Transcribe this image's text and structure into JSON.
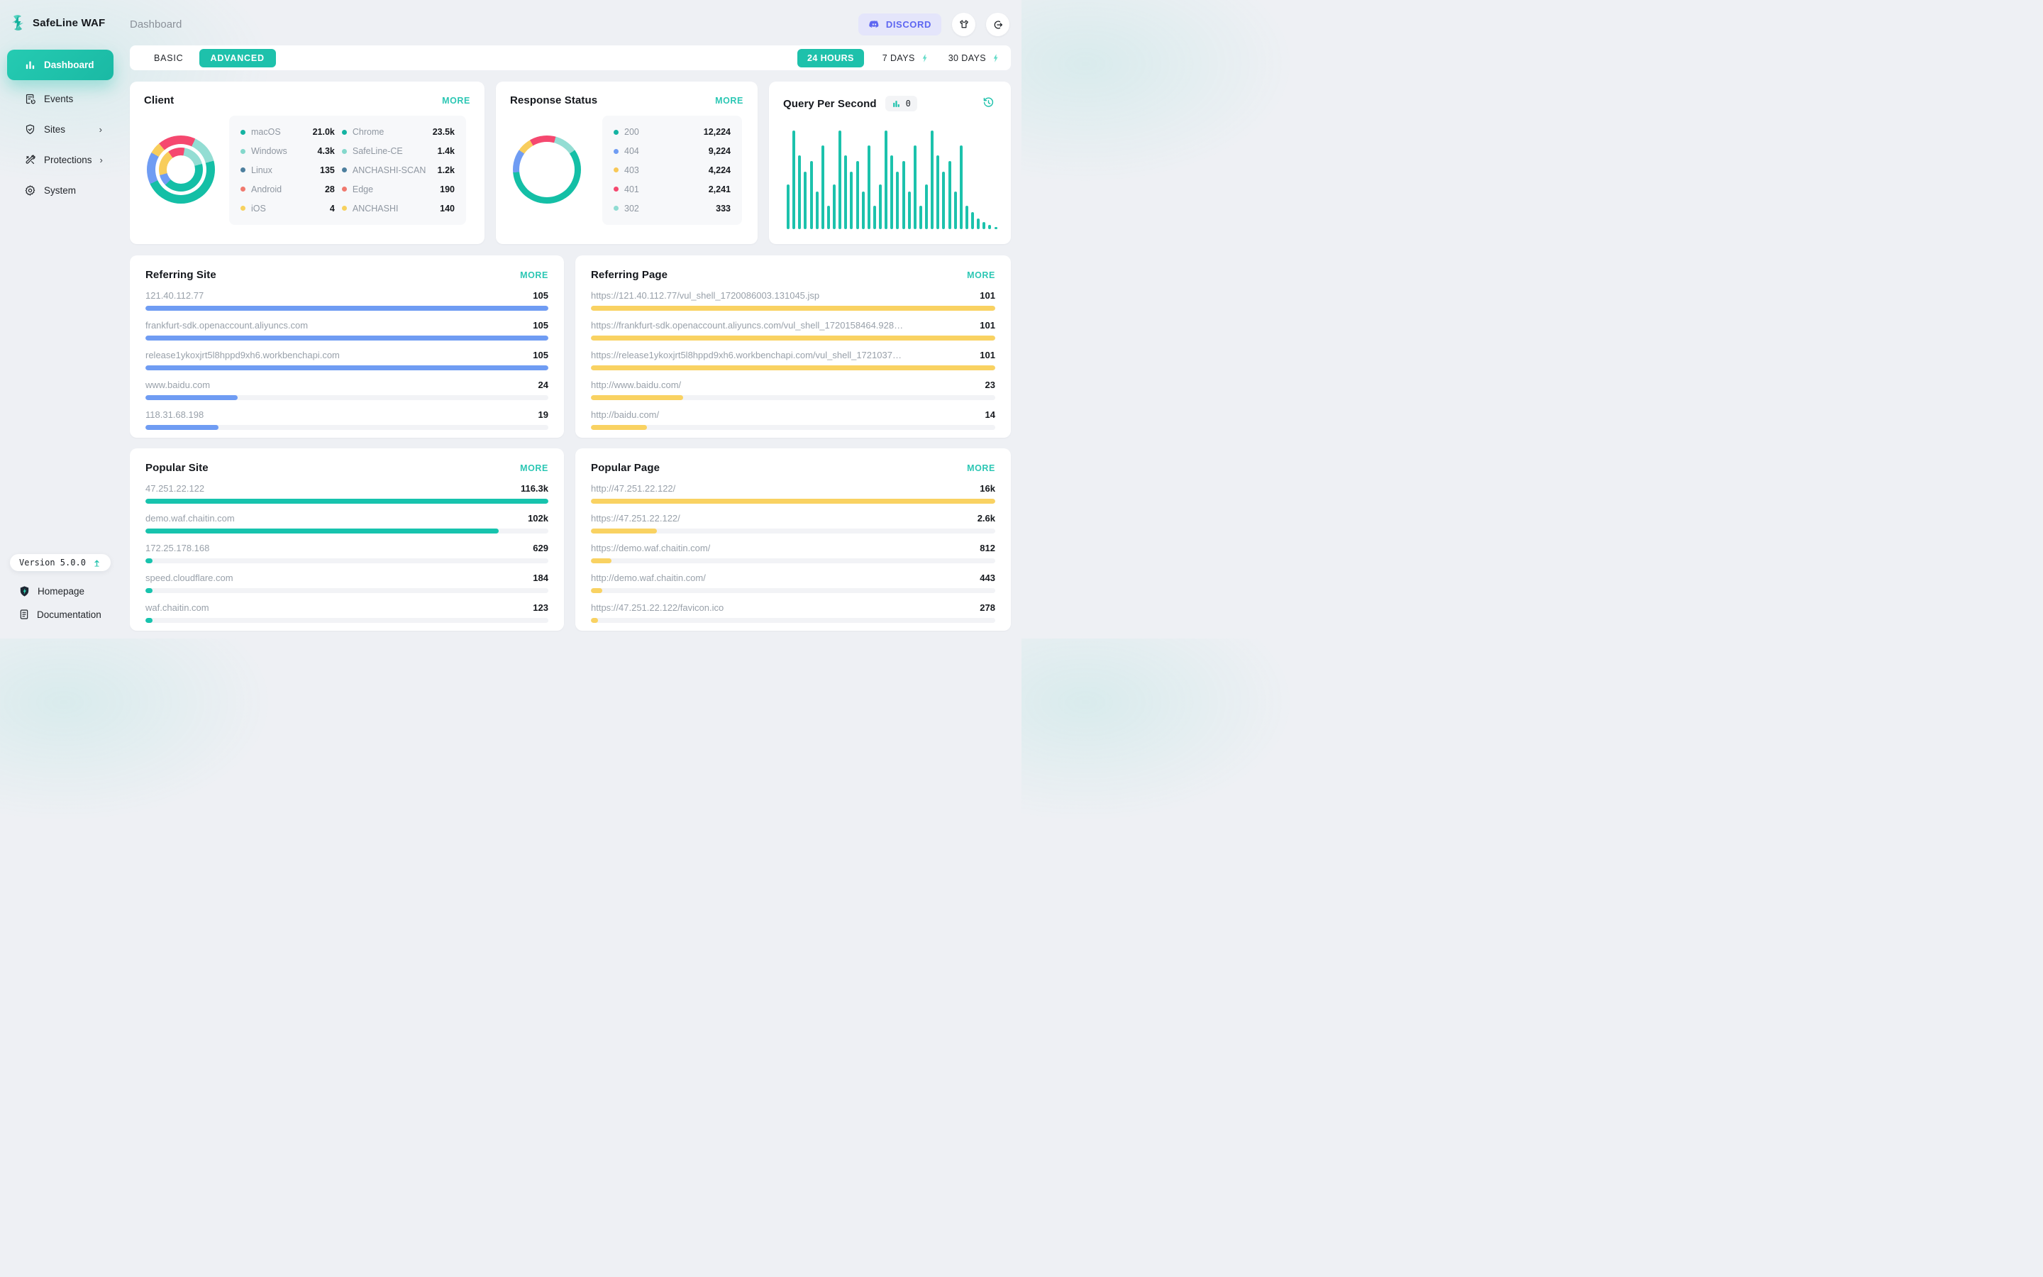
{
  "app": {
    "name": "SafeLine WAF",
    "breadcrumb": "Dashboard"
  },
  "header": {
    "discord_label": "DISCORD",
    "icons": [
      "discord-icon",
      "tshirt-icon",
      "logout-icon"
    ]
  },
  "sidebar": {
    "items": [
      {
        "label": "Dashboard",
        "icon": "bar-chart-icon",
        "active": true,
        "chevron": false
      },
      {
        "label": "Events",
        "icon": "event-log-icon",
        "active": false,
        "chevron": false
      },
      {
        "label": "Sites",
        "icon": "shield-check-icon",
        "active": false,
        "chevron": true
      },
      {
        "label": "Protections",
        "icon": "tools-icon",
        "active": false,
        "chevron": true
      },
      {
        "label": "System",
        "icon": "gear-icon",
        "active": false,
        "chevron": false
      }
    ],
    "chevron_glyph": "›",
    "version": "Version 5.0.0",
    "footer_links": [
      {
        "label": "Homepage",
        "icon": "shield-logo-icon"
      },
      {
        "label": "Documentation",
        "icon": "document-icon"
      }
    ]
  },
  "toolbar": {
    "tabs": [
      "BASIC",
      "ADVANCED"
    ],
    "active_tab": "ADVANCED",
    "ranges": [
      "24 HOURS",
      "7 DAYS",
      "30 DAYS"
    ],
    "active_range": "24 HOURS"
  },
  "colors": {
    "accent_teal": "#1ec1ab",
    "donut_teal": "#14bfa6",
    "donut_light_teal": "#93ddd3",
    "donut_blue": "#6f9cf3",
    "donut_yellow": "#f8cd5c",
    "donut_red": "#f5486f",
    "bar_blue": "#6f9cf3",
    "bar_yellow": "#f9d262",
    "bar_teal": "#17c3ad",
    "discord_indigo": "#5d66f1"
  },
  "cards": {
    "client": {
      "title": "Client",
      "more": "MORE",
      "legend_columns": [
        [
          {
            "label": "macOS",
            "value": "21.0k",
            "dot": "#14b3a2"
          },
          {
            "label": "Windows",
            "value": "4.3k",
            "dot": "#84d8cc"
          },
          {
            "label": "Linux",
            "value": "135",
            "dot": "#4d7f9e"
          },
          {
            "label": "Android",
            "value": "28",
            "dot": "#f0796e"
          },
          {
            "label": "iOS",
            "value": "4",
            "dot": "#f7d15e"
          }
        ],
        [
          {
            "label": "Chrome",
            "value": "23.5k",
            "dot": "#14b3a2"
          },
          {
            "label": "SafeLine-CE",
            "value": "1.4k",
            "dot": "#84d8cc"
          },
          {
            "label": "ANCHASHI-SCAN",
            "value": "1.2k",
            "dot": "#4d7f9e"
          },
          {
            "label": "Edge",
            "value": "190",
            "dot": "#f0796e"
          },
          {
            "label": "ANCHASHI",
            "value": "140",
            "dot": "#f7d15e"
          }
        ]
      ],
      "donut_outer": [
        {
          "color": "#f5486f",
          "end": 25
        },
        {
          "color": "#93ddd3",
          "end": 75
        },
        {
          "color": "#14bfa6",
          "end": 245
        },
        {
          "color": "#6f9cf3",
          "end": 300
        },
        {
          "color": "#f8cd5c",
          "end": 320
        },
        {
          "color": "#f5486f",
          "end": 360
        }
      ],
      "donut_inner": [
        {
          "color": "#f5486f",
          "end": 10
        },
        {
          "color": "#93ddd3",
          "end": 75
        },
        {
          "color": "#14bfa6",
          "end": 225
        },
        {
          "color": "#6f9cf3",
          "end": 255
        },
        {
          "color": "#f8cd5c",
          "end": 325
        },
        {
          "color": "#f5486f",
          "end": 360
        }
      ]
    },
    "response_status": {
      "title": "Response Status",
      "more": "MORE",
      "legend": [
        {
          "label": "200",
          "value": "12,224",
          "dot": "#14b3a2"
        },
        {
          "label": "404",
          "value": "9,224",
          "dot": "#6f9cf3"
        },
        {
          "label": "403",
          "value": "4,224",
          "dot": "#f8c857"
        },
        {
          "label": "401",
          "value": "2,241",
          "dot": "#f5486f"
        },
        {
          "label": "302",
          "value": "333",
          "dot": "#8fdcd2"
        }
      ],
      "donut": [
        {
          "color": "#f5486f",
          "end": 15
        },
        {
          "color": "#93ddd3",
          "end": 55
        },
        {
          "color": "#14bfa6",
          "end": 265
        },
        {
          "color": "#6f9cf3",
          "end": 305
        },
        {
          "color": "#f8cd5c",
          "end": 330
        },
        {
          "color": "#f5486f",
          "end": 360
        }
      ]
    },
    "qps": {
      "title": "Query Per Second",
      "badge_value": "0"
    },
    "referring_site": {
      "title": "Referring Site",
      "more": "MORE",
      "bar_color": "#6f9cf3",
      "rows": [
        {
          "label": "121.40.112.77",
          "display": "105",
          "value": 105
        },
        {
          "label": "frankfurt-sdk.openaccount.aliyuncs.com",
          "display": "105",
          "value": 105
        },
        {
          "label": "release1ykoxjrt5l8hppd9xh6.workbenchapi.com",
          "display": "105",
          "value": 105
        },
        {
          "label": "www.baidu.com",
          "display": "24",
          "value": 24
        },
        {
          "label": "118.31.68.198",
          "display": "19",
          "value": 19
        }
      ]
    },
    "referring_page": {
      "title": "Referring Page",
      "more": "MORE",
      "bar_color": "#f9d262",
      "rows": [
        {
          "label": "https://121.40.112.77/vul_shell_1720086003.131045.jsp",
          "display": "101",
          "value": 101
        },
        {
          "label": "https://frankfurt-sdk.openaccount.aliyuncs.com/vul_shell_1720158464.9283571...",
          "display": "101",
          "value": 101
        },
        {
          "label": "https://release1ykoxjrt5l8hppd9xh6.workbenchapi.com/vul_shell_1721037986...",
          "display": "101",
          "value": 101
        },
        {
          "label": "http://www.baidu.com/",
          "display": "23",
          "value": 23
        },
        {
          "label": "http://baidu.com/",
          "display": "14",
          "value": 14
        }
      ]
    },
    "popular_site": {
      "title": "Popular Site",
      "more": "MORE",
      "bar_color": "#17c3ad",
      "rows": [
        {
          "label": "47.251.22.122",
          "display": "116.3k",
          "value": 116300
        },
        {
          "label": "demo.waf.chaitin.com",
          "display": "102k",
          "value": 102000
        },
        {
          "label": "172.25.178.168",
          "display": "629",
          "value": 629
        },
        {
          "label": "speed.cloudflare.com",
          "display": "184",
          "value": 184
        },
        {
          "label": "waf.chaitin.com",
          "display": "123",
          "value": 123
        }
      ]
    },
    "popular_page": {
      "title": "Popular Page",
      "more": "MORE",
      "bar_color": "#f9d262",
      "rows": [
        {
          "label": "http://47.251.22.122/",
          "display": "16k",
          "value": 16000
        },
        {
          "label": "https://47.251.22.122/",
          "display": "2.6k",
          "value": 2600
        },
        {
          "label": "https://demo.waf.chaitin.com/",
          "display": "812",
          "value": 812
        },
        {
          "label": "http://demo.waf.chaitin.com/",
          "display": "443",
          "value": 443
        },
        {
          "label": "https://47.251.22.122/favicon.ico",
          "display": "278",
          "value": 278
        }
      ]
    }
  },
  "chart_data": [
    {
      "id": "client_outer_ring",
      "type": "pie",
      "title": "Client — browser/agent (outer ring)",
      "labels": [
        "Chrome",
        "SafeLine-CE",
        "ANCHASHI-SCAN",
        "Edge",
        "ANCHASHI"
      ],
      "values": [
        23500,
        1400,
        1200,
        190,
        140
      ],
      "value_labels": [
        "23.5k",
        "1.4k",
        "1.2k",
        "190",
        "140"
      ],
      "legend_position": "right"
    },
    {
      "id": "client_inner_ring",
      "type": "pie",
      "title": "Client — OS (inner ring)",
      "labels": [
        "macOS",
        "Windows",
        "Linux",
        "Android",
        "iOS"
      ],
      "values": [
        21000,
        4300,
        135,
        28,
        4
      ],
      "value_labels": [
        "21.0k",
        "4.3k",
        "135",
        "28",
        "4"
      ],
      "legend_position": "right"
    },
    {
      "id": "response_status",
      "type": "pie",
      "title": "Response Status",
      "labels": [
        "200",
        "404",
        "403",
        "401",
        "302"
      ],
      "values": [
        12224,
        9224,
        4224,
        2241,
        333
      ],
      "value_labels": [
        "12,224",
        "9,224",
        "4,224",
        "2,241",
        "333"
      ],
      "legend_position": "right"
    },
    {
      "id": "qps",
      "type": "bar",
      "title": "Query Per Second",
      "current_value": 0,
      "xlabel": "",
      "ylabel": "",
      "note": "no axis ticks shown; heights are percent of tallest bar",
      "relative_heights": [
        45,
        100,
        75,
        58,
        69,
        38,
        85,
        24,
        45,
        100,
        75,
        58,
        69,
        38,
        85,
        24,
        45,
        100,
        75,
        58,
        69,
        38,
        85,
        24,
        45,
        100,
        75,
        58,
        69,
        38,
        85,
        24,
        17,
        11,
        7,
        4.5,
        2.5
      ]
    },
    {
      "id": "referring_site",
      "type": "bar",
      "title": "Referring Site",
      "categories": [
        "121.40.112.77",
        "frankfurt-sdk.openaccount.aliyuncs.com",
        "release1ykoxjrt5l8hppd9xh6.workbenchapi.com",
        "www.baidu.com",
        "118.31.68.198"
      ],
      "values": [
        105,
        105,
        105,
        24,
        19
      ]
    },
    {
      "id": "referring_page",
      "type": "bar",
      "title": "Referring Page",
      "categories": [
        "https://121.40.112.77/vul_shell_1720086003.131045.jsp",
        "https://frankfurt-sdk.openaccount.aliyuncs.com/vul_shell_1720158464.9283571...",
        "https://release1ykoxjrt5l8hppd9xh6.workbenchapi.com/vul_shell_1721037986...",
        "http://www.baidu.com/",
        "http://baidu.com/"
      ],
      "values": [
        101,
        101,
        101,
        23,
        14
      ]
    },
    {
      "id": "popular_site",
      "type": "bar",
      "title": "Popular Site",
      "categories": [
        "47.251.22.122",
        "demo.waf.chaitin.com",
        "172.25.178.168",
        "speed.cloudflare.com",
        "waf.chaitin.com"
      ],
      "values": [
        116300,
        102000,
        629,
        184,
        123
      ],
      "value_labels": [
        "116.3k",
        "102k",
        "629",
        "184",
        "123"
      ]
    },
    {
      "id": "popular_page",
      "type": "bar",
      "title": "Popular Page",
      "categories": [
        "http://47.251.22.122/",
        "https://47.251.22.122/",
        "https://demo.waf.chaitin.com/",
        "http://demo.waf.chaitin.com/",
        "https://47.251.22.122/favicon.ico"
      ],
      "values": [
        16000,
        2600,
        812,
        443,
        278
      ],
      "value_labels": [
        "16k",
        "2.6k",
        "812",
        "443",
        "278"
      ]
    }
  ]
}
